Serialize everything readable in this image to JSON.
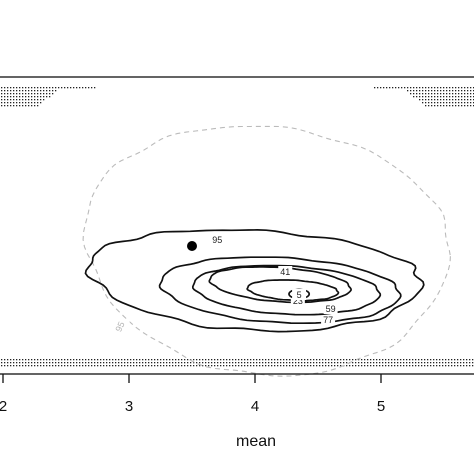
{
  "chart_data": {
    "type": "contour",
    "xlabel": "mean",
    "ylabel": "",
    "title": "",
    "xlim": [
      2,
      5.75
    ],
    "x_ticks": [
      "2",
      "3",
      "4",
      "5"
    ],
    "x_tick_values": [
      2,
      3,
      4,
      5
    ],
    "grid": false,
    "solid_contours": {
      "color": "#111111",
      "line_style": "solid",
      "levels": [
        {
          "label": "95",
          "center_x": 4.0,
          "half_width": 1.32,
          "label_x": 3.7
        },
        {
          "label": "77",
          "center_x": 4.2,
          "half_width": 0.95,
          "label_x": 4.58
        },
        {
          "label": "59",
          "center_x": 4.25,
          "half_width": 0.74,
          "label_x": 4.6
        },
        {
          "label": "41",
          "center_x": 4.2,
          "half_width": 0.56,
          "label_x": 4.24
        },
        {
          "label": "23",
          "center_x": 4.3,
          "half_width": 0.36,
          "label_x": 4.34
        },
        {
          "label": "5",
          "center_x": 4.35,
          "half_width": 0.08,
          "label_x": 4.35
        }
      ]
    },
    "grey_contours": {
      "color": "#bbbbbb",
      "line_style": "dashed",
      "levels": [
        {
          "label": "95",
          "center_x": 4.1,
          "half_width": 1.45,
          "label_x": 2.95
        }
      ]
    },
    "point": {
      "x": 3.5,
      "color": "#000000"
    }
  }
}
